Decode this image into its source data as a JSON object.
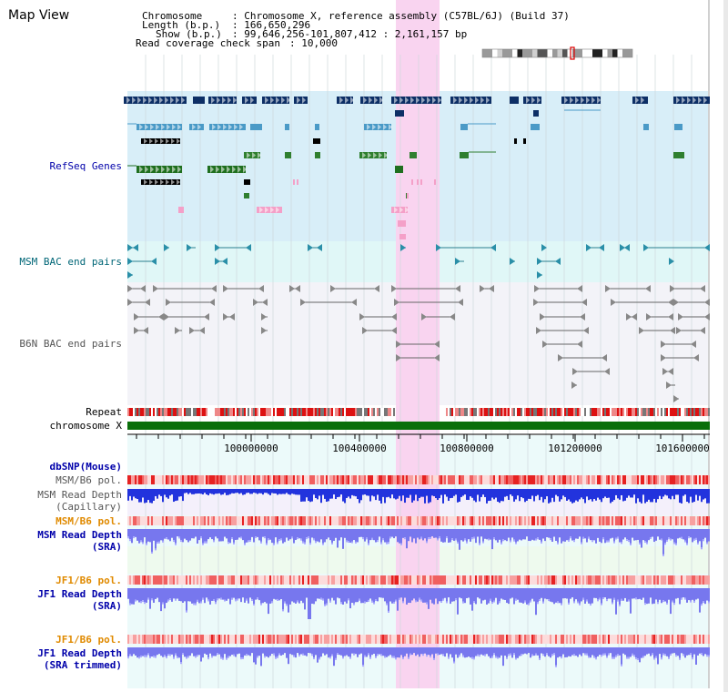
{
  "window": {
    "title": "Map View"
  },
  "info": {
    "chromosome_key": "Chromosome",
    "chromosome_value": ": Chromosome X, reference assembly (C57BL/6J) (Build 37)",
    "length_key": "Length (b.p.)",
    "length_value": ": 166,650,296",
    "show_key": "Show (b.p.)",
    "show_value": ": 99,646,256-101,807,412 : 2,161,157 bp",
    "coverage_key": "Read coverage check span",
    "coverage_value": ": 10,000"
  },
  "tracks": {
    "refseq": "RefSeq Genes",
    "msm_bac": "MSM BAC end pairs",
    "b6n_bac": "B6N BAC end pairs",
    "repeat": "Repeat",
    "chromosome": "chromosome X",
    "dbsnp": "dbSNP(Mouse)",
    "msm_pol_cap": "MSM/B6 pol.",
    "msm_depth_cap_1": "MSM Read Depth",
    "msm_depth_cap_2": "(Capillary)",
    "msm_pol_sra": "MSM/B6 pol.",
    "msm_depth_sra_1": "MSM Read Depth",
    "msm_depth_sra_2": "(SRA)",
    "jf1_pol": "JF1/B6 pol.",
    "jf1_depth_1": "JF1 Read Depth",
    "jf1_depth_2": "(SRA)",
    "jf1_pol_trim": "JF1/B6 pol.",
    "jf1_depth_trim_1": "JF1 Read Depth",
    "jf1_depth_trim_2": "(SRA trimmed)"
  },
  "axis": {
    "ticks": [
      "100000000",
      "100400000",
      "100800000",
      "101200000",
      "101600000"
    ]
  },
  "colors": {
    "refseq_bg": "#d8eef8",
    "msm_bg": "#e0f7f7",
    "b6n_bg": "#f3f3f8",
    "highlight": "#f9d4f0",
    "chromosome_bar": "#0a6f0a",
    "depth_blue": "#2233dd",
    "depth_light": "#7777ee",
    "pol_red": "#ee3333",
    "label_blue": "#0000aa",
    "label_orange": "#e08a00",
    "label_teal": "#006677"
  }
}
